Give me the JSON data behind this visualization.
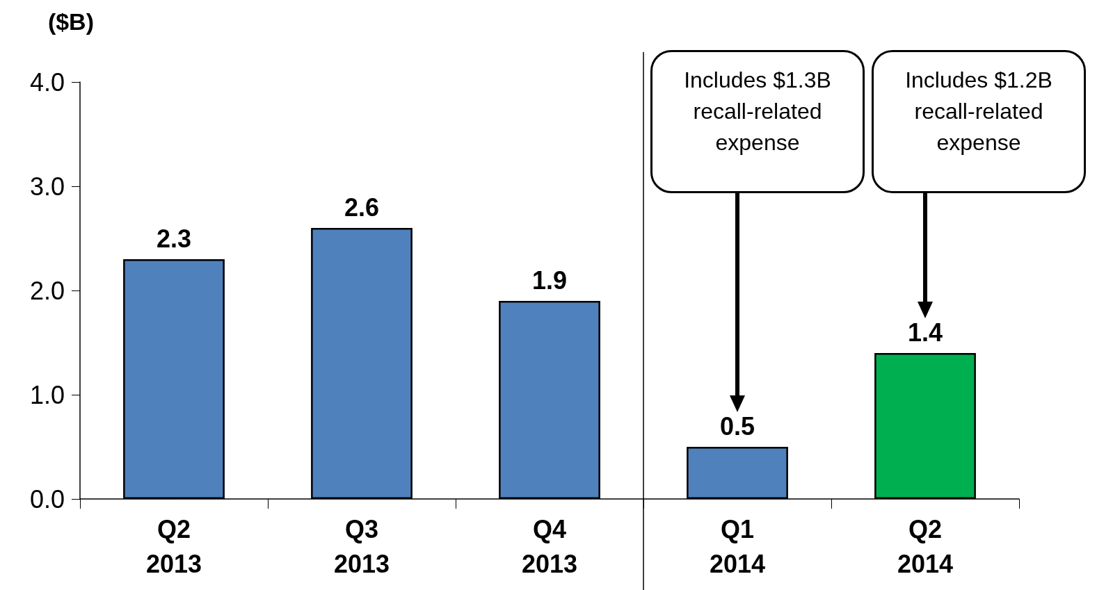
{
  "chart_data": {
    "type": "bar",
    "ylabel": "($B)",
    "categories": [
      "Q2\n2013",
      "Q3\n2013",
      "Q4\n2013",
      "Q1\n2014",
      "Q2\n2014"
    ],
    "values": [
      2.3,
      2.6,
      1.9,
      0.5,
      1.4
    ],
    "colors": [
      "#4f81bd",
      "#4f81bd",
      "#4f81bd",
      "#4f81bd",
      "#00b050"
    ],
    "data_labels": true,
    "ylim": [
      0,
      4
    ],
    "yticks": [
      {
        "value": 0,
        "label": "0.0"
      },
      {
        "value": 1,
        "label": "1.0"
      },
      {
        "value": 2,
        "label": "2.0"
      },
      {
        "value": 3,
        "label": "3.0"
      },
      {
        "value": 4,
        "label": "4.0"
      }
    ],
    "grid": false,
    "ref_lines": [
      {
        "axis": "x",
        "value": "Q1\n2014"
      }
    ],
    "annotations": [
      "Includes $1.3B\nrecall-related\nexpense",
      "Includes $1.2B\nrecall-related\nexpense"
    ]
  }
}
